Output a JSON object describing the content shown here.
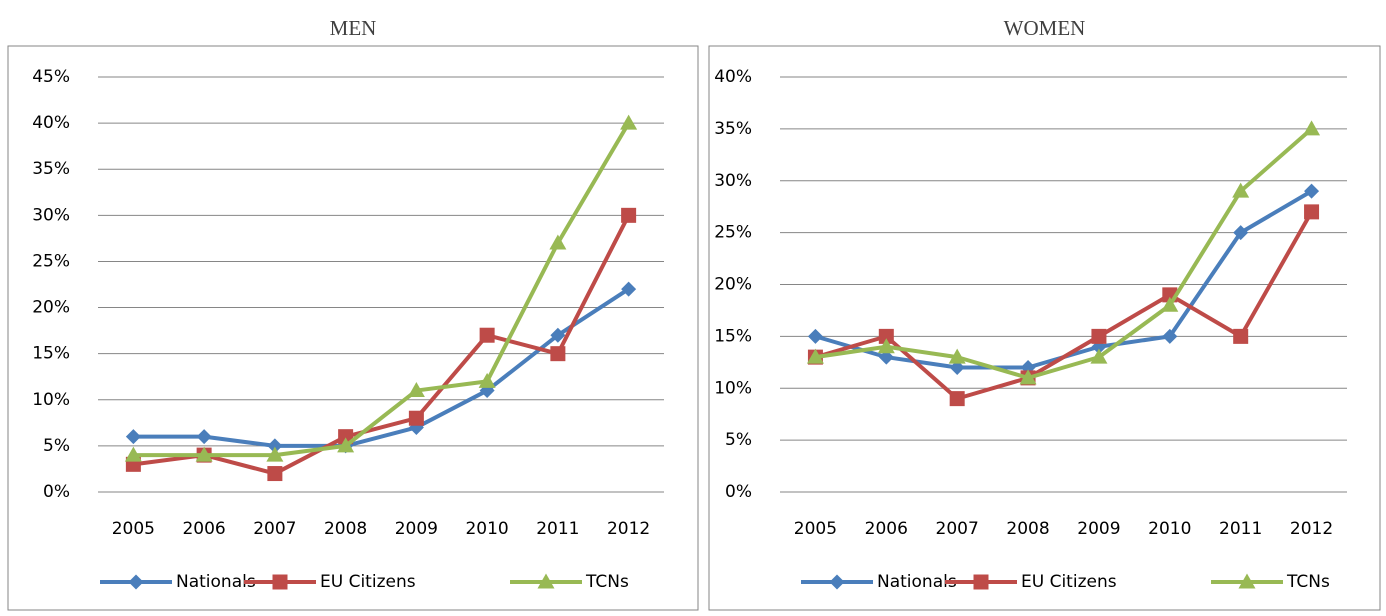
{
  "chart_data": [
    {
      "type": "line",
      "title": "MEN",
      "categories": [
        "2005",
        "2006",
        "2007",
        "2008",
        "2009",
        "2010",
        "2011",
        "2012"
      ],
      "series": [
        {
          "name": "Nationals",
          "color": "#4a7ebb",
          "marker": "diamond",
          "values": [
            6,
            6,
            5,
            5,
            7,
            11,
            17,
            22
          ]
        },
        {
          "name": "EU Citizens",
          "color": "#be4b48",
          "marker": "square",
          "values": [
            3,
            4,
            2,
            6,
            8,
            17,
            15,
            30
          ]
        },
        {
          "name": "TCNs",
          "color": "#98b954",
          "marker": "triangle",
          "values": [
            4,
            4,
            4,
            5,
            11,
            12,
            27,
            40
          ]
        }
      ],
      "ylim": [
        0,
        45
      ],
      "yticks": [
        {
          "value": 0,
          "label": "0%"
        },
        {
          "value": 5,
          "label": "5%"
        },
        {
          "value": 10,
          "label": "10%"
        },
        {
          "value": 15,
          "label": "15%"
        },
        {
          "value": 20,
          "label": "20%"
        },
        {
          "value": 25,
          "label": "25%"
        },
        {
          "value": 30,
          "label": "30%"
        },
        {
          "value": 35,
          "label": "35%"
        },
        {
          "value": 40,
          "label": "40%"
        },
        {
          "value": 45,
          "label": "45%"
        }
      ],
      "grid": true,
      "legend": "bottom"
    },
    {
      "type": "line",
      "title": "WOMEN",
      "categories": [
        "2005",
        "2006",
        "2007",
        "2008",
        "2009",
        "2010",
        "2011",
        "2012"
      ],
      "series": [
        {
          "name": "Nationals",
          "color": "#4a7ebb",
          "marker": "diamond",
          "values": [
            15,
            13,
            12,
            12,
            14,
            15,
            25,
            29
          ]
        },
        {
          "name": "EU Citizens",
          "color": "#be4b48",
          "marker": "square",
          "values": [
            13,
            15,
            9,
            11,
            15,
            19,
            15,
            27
          ]
        },
        {
          "name": "TCNs",
          "color": "#98b954",
          "marker": "triangle",
          "values": [
            13,
            14,
            13,
            11,
            13,
            18,
            29,
            35
          ]
        }
      ],
      "ylim": [
        0,
        40
      ],
      "yticks": [
        {
          "value": 0,
          "label": "0%"
        },
        {
          "value": 5,
          "label": "5%"
        },
        {
          "value": 10,
          "label": "10%"
        },
        {
          "value": 15,
          "label": "15%"
        },
        {
          "value": 20,
          "label": "20%"
        },
        {
          "value": 25,
          "label": "25%"
        },
        {
          "value": 30,
          "label": "30%"
        },
        {
          "value": 35,
          "label": "35%"
        },
        {
          "value": 40,
          "label": "40%"
        }
      ],
      "grid": true,
      "legend": "bottom"
    }
  ]
}
